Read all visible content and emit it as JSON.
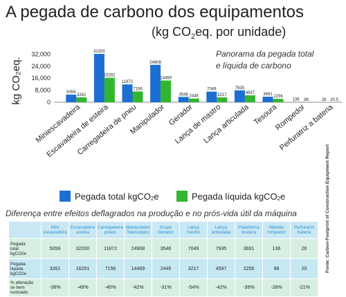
{
  "header": {
    "title": "A pegada de carbono dos equipamentos",
    "subtitle_pre": "(kg CO",
    "subtitle_sub": "2",
    "subtitle_post": "eq. por unidade)"
  },
  "panorama_line1": "Panorama da pegada total",
  "panorama_line2": "e líquida de carbono",
  "colors": {
    "total": "#1c6fd1",
    "liquid": "#33b52f"
  },
  "chart_data": {
    "type": "bar",
    "ylabel": "kg CO₂eq.",
    "ytick_labels": [
      "32,000",
      "24,000",
      "16,000",
      "8,000",
      "0"
    ],
    "yticks": [
      32000,
      24000,
      16000,
      8000,
      0
    ],
    "ylim": [
      0,
      32200
    ],
    "categories": [
      "Miniescavadeira",
      "Escavadeira de esteira",
      "Carregadeira de pneu",
      "Manipulador",
      "Gerador",
      "Lança de mastro",
      "Lança articulada",
      "Tesoura",
      "Rompedor",
      "Perfuratriz a bateria"
    ],
    "series": [
      {
        "name": "Pegada total kgCO₂e",
        "values": [
          5059,
          32200,
          11872,
          24908,
          3546,
          7049,
          7935,
          3691,
          136,
          26
        ]
      },
      {
        "name": "Pegada líquida kgCO₂e",
        "values": [
          3261,
          16291,
          7156,
          14469,
          2445,
          3217,
          4597,
          2256,
          98,
          20.5
        ]
      }
    ],
    "value_labels": [
      [
        "5059",
        "32200",
        "11872",
        "24908",
        "3546",
        "7049",
        "7935",
        "3691",
        "136",
        "26"
      ],
      [
        "3261",
        "16291",
        "7156",
        "14469",
        "2445",
        "3217",
        "4597",
        "2256",
        "98",
        "20.5"
      ]
    ],
    "legend": "bottom",
    "grid": false
  },
  "legend": {
    "total_pre": "Pegada total kgCO",
    "total_sub": "2",
    "total_post": "e",
    "liquid_pre": "Pegada líquida kgCO",
    "liquid_sub": "2",
    "liquid_post": "e"
  },
  "diff_title": "Diferença entre efeitos deflagrados na produção e no prós-vida útil da máquina",
  "source": "Fonte: Carbon-Footprint of Construction Equipment Report",
  "table": {
    "headers": [
      [
        "Mini",
        "escavadeira"
      ],
      [
        "Escavadeira",
        "esteira"
      ],
      [
        "Carregadeira",
        "pneus"
      ],
      [
        "Manipulador",
        "Telescópico"
      ],
      [
        "Grupo",
        "Gerador"
      ],
      [
        "Lança",
        "mastro"
      ],
      [
        "Lança",
        "articulada"
      ],
      [
        "Plataforma",
        "tesoura"
      ],
      [
        "Martelo",
        "rompedor"
      ],
      [
        "Perfuratriz",
        "bateria"
      ]
    ],
    "rows": [
      {
        "label": [
          "Pegada",
          "total",
          "kgCO2e"
        ],
        "values": [
          "5059",
          "32200",
          "11872",
          "24908",
          "3546",
          "7049",
          "7935",
          "3691",
          "136",
          "26"
        ]
      },
      {
        "label": [
          "Pegada",
          "líquida",
          "kgCO2e"
        ],
        "values": [
          "3261",
          "16291",
          "7156",
          "14469",
          "2445",
          "3217",
          "4597",
          "2256",
          "98",
          "20"
        ]
      },
      {
        "label": [
          "% alteração",
          "se bem",
          "reciclado"
        ],
        "values": [
          "-36%",
          "-49%",
          "-40%",
          "-42%",
          "-31%",
          "-54%",
          "-42%",
          "-39%",
          "-28%",
          "-21%"
        ]
      }
    ]
  }
}
